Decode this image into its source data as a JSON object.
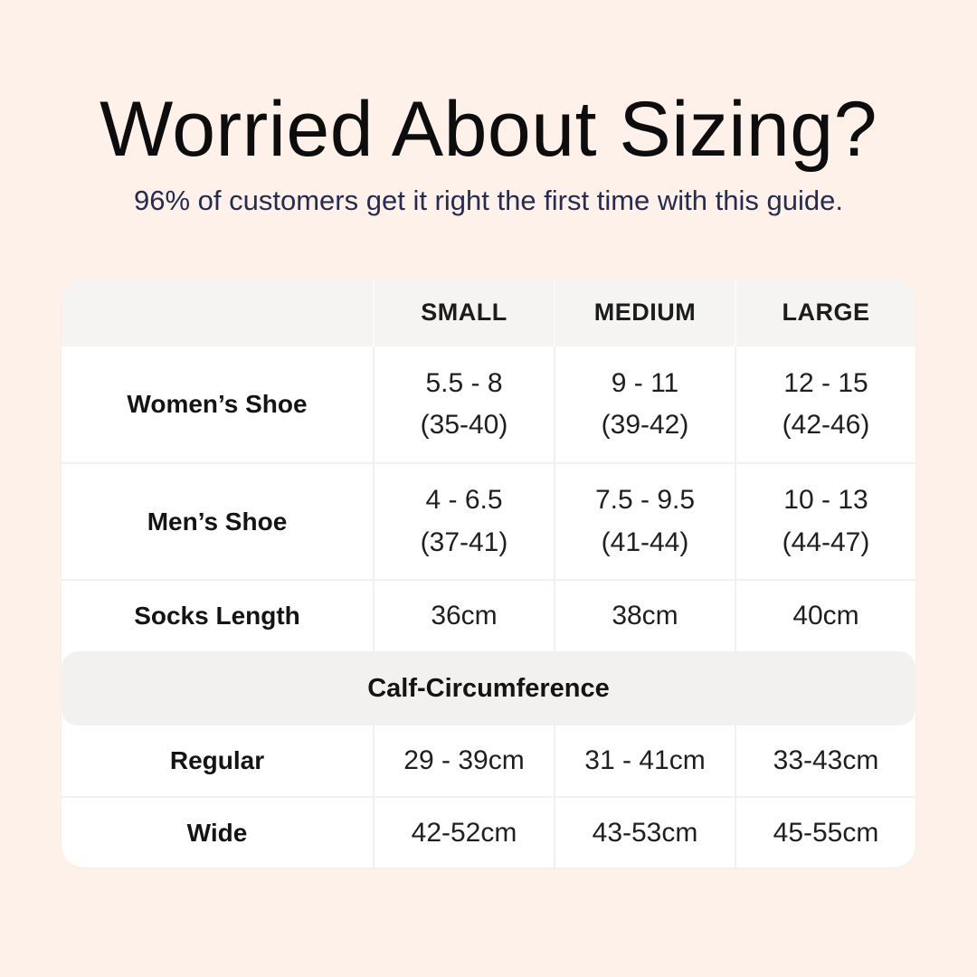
{
  "page": {
    "title": "Worried About Sizing?",
    "subtitle": "96% of customers get it right the first time with this guide.",
    "background_color": "#fdf1e9",
    "title_color": "#0d0d0d",
    "subtitle_color": "#262c4f",
    "card_color": "#ffffff",
    "header_band_color": "#f5f4f3",
    "section_band_color": "#f2f1f0"
  },
  "table": {
    "columns": [
      "SMALL",
      "MEDIUM",
      "LARGE"
    ],
    "rows": [
      {
        "label": "Women’s Shoe",
        "cells": [
          {
            "line1": "5.5 - 8",
            "line2": "(35-40)"
          },
          {
            "line1": "9 - 11",
            "line2": "(39-42)"
          },
          {
            "line1": "12 - 15",
            "line2": "(42-46)"
          }
        ]
      },
      {
        "label": "Men’s Shoe",
        "cells": [
          {
            "line1": "4 - 6.5",
            "line2": "(37-41)"
          },
          {
            "line1": "7.5 - 9.5",
            "line2": "(41-44)"
          },
          {
            "line1": "10 - 13",
            "line2": "(44-47)"
          }
        ]
      },
      {
        "label": "Socks Length",
        "cells": [
          {
            "line1": "36cm"
          },
          {
            "line1": "38cm"
          },
          {
            "line1": "40cm"
          }
        ]
      }
    ],
    "section_header": "Calf-Circumference",
    "section_rows": [
      {
        "label": "Regular",
        "cells": [
          "29 - 39cm",
          "31 - 41cm",
          "33-43cm"
        ]
      },
      {
        "label": "Wide",
        "cells": [
          "42-52cm",
          "43-53cm",
          "45-55cm"
        ]
      }
    ]
  },
  "chart_data": {
    "type": "table",
    "title": "Worried About Sizing?",
    "subtitle": "96% of customers get it right the first time with this guide.",
    "columns": [
      "",
      "SMALL",
      "MEDIUM",
      "LARGE"
    ],
    "rows": [
      [
        "Women’s Shoe",
        "5.5 - 8 (35-40)",
        "9 - 11 (39-42)",
        "12 - 15 (42-46)"
      ],
      [
        "Men’s Shoe",
        "4 - 6.5 (37-41)",
        "7.5 - 9.5 (41-44)",
        "10 - 13 (44-47)"
      ],
      [
        "Socks Length",
        "36cm",
        "38cm",
        "40cm"
      ],
      [
        "Calf-Circumference",
        "",
        "",
        ""
      ],
      [
        "Regular",
        "29 - 39cm",
        "31 - 41cm",
        "33-43cm"
      ],
      [
        "Wide",
        "42-52cm",
        "43-53cm",
        "45-55cm"
      ]
    ]
  }
}
